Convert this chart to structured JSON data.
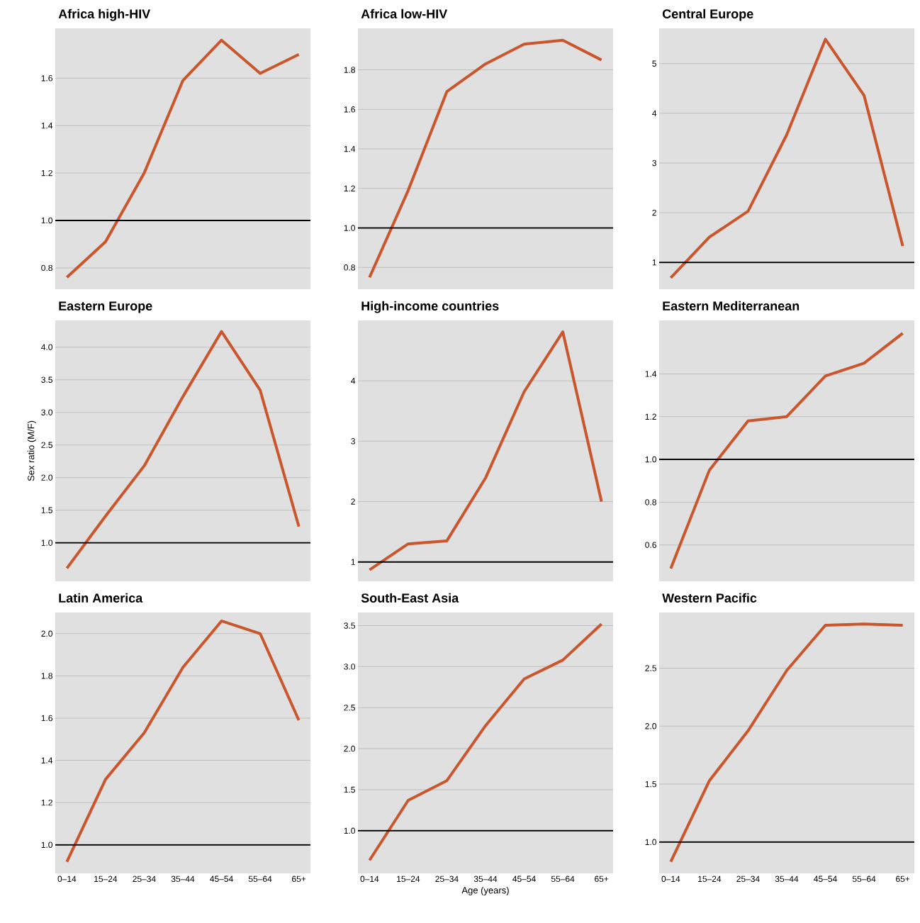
{
  "chart_data": [
    {
      "type": "line",
      "title": "Africa high-HIV",
      "categories": [
        null,
        null,
        null,
        null,
        null,
        null,
        null
      ],
      "series": [
        {
          "color": "#c9562c",
          "values": [
            0.76,
            0.91,
            1.2,
            1.59,
            1.76,
            1.62,
            1.7
          ]
        }
      ],
      "ylim": [
        0.71,
        1.81
      ],
      "yticks": [
        0.8,
        {
          "value": 1,
          "label": "1.0"
        },
        1.2,
        1.4,
        1.6
      ],
      "grid": "y",
      "ref_lines": [
        {
          "axis": "y",
          "value": 1,
          "color": "#000000"
        }
      ],
      "tick_labels": "y"
    },
    {
      "type": "line",
      "title": "Africa low-HIV",
      "categories": [
        null,
        null,
        null,
        null,
        null,
        null,
        null
      ],
      "series": [
        {
          "color": "#c9562c",
          "values": [
            0.75,
            1.19,
            1.69,
            1.83,
            1.93,
            1.95,
            1.85
          ]
        }
      ],
      "ylim": [
        0.69,
        2.01
      ],
      "yticks": [
        0.8,
        {
          "value": 1,
          "label": "1.0"
        },
        1.2,
        1.4,
        1.6,
        1.8
      ],
      "grid": "y",
      "ref_lines": [
        {
          "axis": "y",
          "value": 1,
          "color": "#000000"
        }
      ],
      "tick_labels": "y"
    },
    {
      "type": "line",
      "title": "Central Europe",
      "categories": [
        null,
        null,
        null,
        null,
        null,
        null,
        null
      ],
      "series": [
        {
          "color": "#c9562c",
          "values": [
            0.69,
            1.51,
            2.03,
            3.57,
            5.49,
            4.36,
            1.33
          ]
        }
      ],
      "ylim": [
        0.46,
        5.71
      ],
      "yticks": [
        1,
        2,
        3,
        4,
        5
      ],
      "grid": "y",
      "ref_lines": [
        {
          "axis": "y",
          "value": 1,
          "color": "#000000"
        }
      ],
      "tick_labels": "y"
    },
    {
      "type": "line",
      "title": "Eastern Europe",
      "ylabel": "Sex ratio (M/F)",
      "categories": [
        null,
        null,
        null,
        null,
        null,
        null,
        null
      ],
      "series": [
        {
          "color": "#c9562c",
          "values": [
            0.61,
            1.41,
            2.18,
            3.24,
            4.24,
            3.34,
            1.25
          ]
        }
      ],
      "ylim": [
        0.41,
        4.41
      ],
      "yticks": [
        {
          "value": 1,
          "label": "1.0"
        },
        1.5,
        {
          "value": 2,
          "label": "2.0"
        },
        2.5,
        {
          "value": 3,
          "label": "3.0"
        },
        3.5,
        {
          "value": 4,
          "label": "4.0"
        }
      ],
      "grid": "y",
      "ref_lines": [
        {
          "axis": "y",
          "value": 1,
          "color": "#000000"
        }
      ],
      "tick_labels": "y"
    },
    {
      "type": "line",
      "title": "High-income countries",
      "categories": [
        null,
        null,
        null,
        null,
        null,
        null,
        null
      ],
      "series": [
        {
          "color": "#c9562c",
          "values": [
            0.87,
            1.3,
            1.35,
            2.39,
            3.82,
            4.81,
            2.0
          ]
        }
      ],
      "ylim": [
        0.68,
        5.0
      ],
      "yticks": [
        1,
        2,
        3,
        4
      ],
      "grid": "y",
      "ref_lines": [
        {
          "axis": "y",
          "value": 1,
          "color": "#000000"
        }
      ],
      "tick_labels": "y"
    },
    {
      "type": "line",
      "title": "Eastern Mediterranean",
      "categories": [
        null,
        null,
        null,
        null,
        null,
        null,
        null
      ],
      "series": [
        {
          "color": "#c9562c",
          "values": [
            0.49,
            0.95,
            1.18,
            1.2,
            1.39,
            1.45,
            1.59
          ]
        }
      ],
      "ylim": [
        0.43,
        1.65
      ],
      "yticks": [
        0.6,
        0.8,
        {
          "value": 1,
          "label": "1.0"
        },
        1.2,
        1.4
      ],
      "grid": "y",
      "ref_lines": [
        {
          "axis": "y",
          "value": 1,
          "color": "#000000"
        }
      ],
      "tick_labels": "y"
    },
    {
      "type": "line",
      "title": "Latin America",
      "categories": [
        "0–14",
        "15–24",
        "25–34",
        "35–44",
        "45–54",
        "55–64",
        "65+"
      ],
      "series": [
        {
          "color": "#c9562c",
          "values": [
            0.92,
            1.31,
            1.53,
            1.84,
            2.06,
            2.0,
            1.59
          ]
        }
      ],
      "ylim": [
        0.865,
        2.1
      ],
      "yticks": [
        {
          "value": 1,
          "label": "1.0"
        },
        1.2,
        1.4,
        1.6,
        1.8,
        {
          "value": 2,
          "label": "2.0"
        }
      ],
      "grid": "y",
      "ref_lines": [
        {
          "axis": "y",
          "value": 1,
          "color": "#000000"
        }
      ]
    },
    {
      "type": "line",
      "title": "South-East Asia",
      "xlabel": "Age (years)",
      "categories": [
        "0–14",
        "15–24",
        "25–34",
        "35–44",
        "45–54",
        "55–64",
        "65+"
      ],
      "series": [
        {
          "color": "#c9562c",
          "values": [
            0.64,
            1.37,
            1.61,
            2.28,
            2.85,
            3.08,
            3.52
          ]
        }
      ],
      "ylim": [
        0.48,
        3.66
      ],
      "yticks": [
        {
          "value": 1,
          "label": "1.0"
        },
        1.5,
        {
          "value": 2,
          "label": "2.0"
        },
        2.5,
        {
          "value": 3,
          "label": "3.0"
        },
        3.5
      ],
      "grid": "y",
      "ref_lines": [
        {
          "axis": "y",
          "value": 1,
          "color": "#000000"
        }
      ]
    },
    {
      "type": "line",
      "title": "Western Pacific",
      "categories": [
        "0–14",
        "15–24",
        "25–34",
        "35–44",
        "45–54",
        "55–64",
        "65+"
      ],
      "series": [
        {
          "color": "#c9562c",
          "values": [
            0.83,
            1.53,
            1.96,
            2.48,
            2.87,
            2.88,
            2.87
          ]
        }
      ],
      "ylim": [
        0.73,
        2.98
      ],
      "yticks": [
        {
          "value": 1,
          "label": "1.0"
        },
        1.5,
        {
          "value": 2,
          "label": "2.0"
        },
        2.5
      ],
      "grid": "y",
      "ref_lines": [
        {
          "axis": "y",
          "value": 1,
          "color": "#000000"
        }
      ]
    }
  ]
}
